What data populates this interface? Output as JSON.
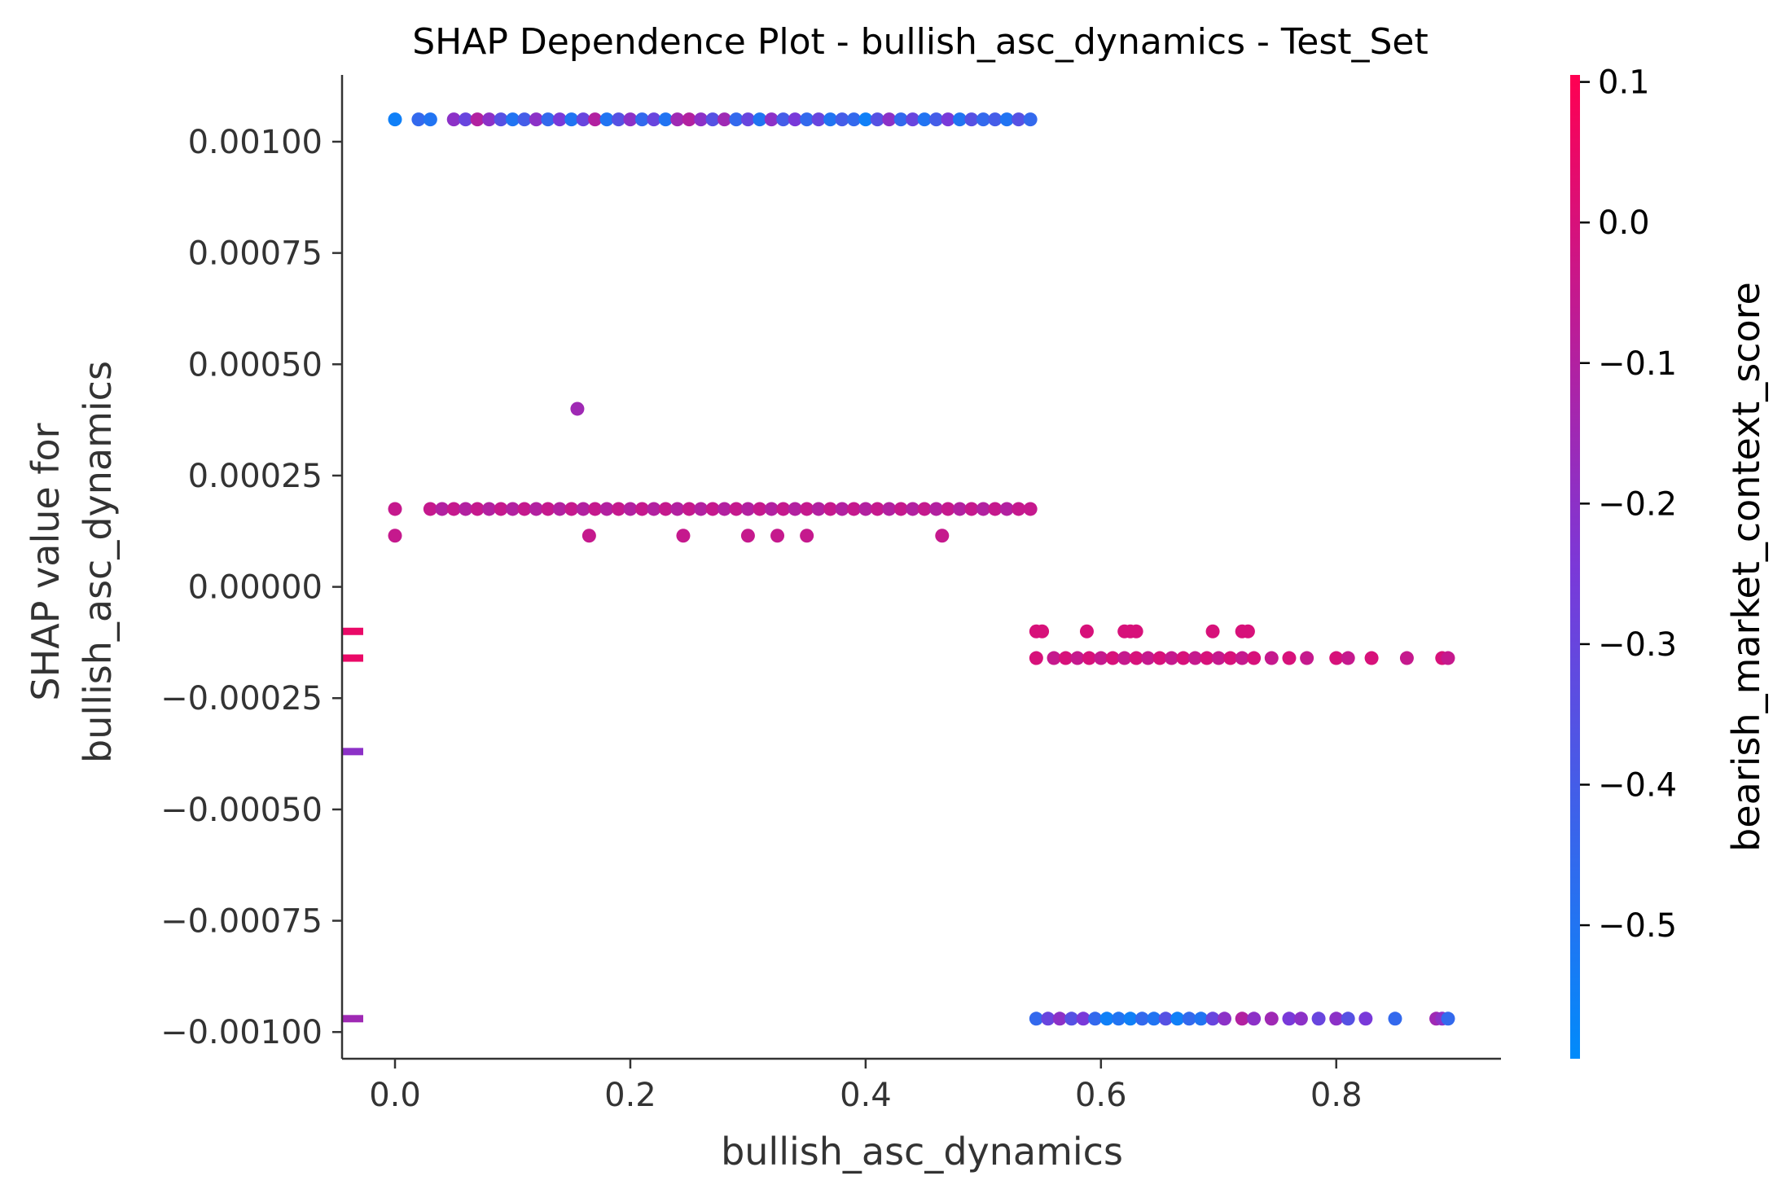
{
  "chart_data": {
    "type": "scatter",
    "title": "SHAP Dependence Plot - bullish_asc_dynamics - Test_Set",
    "xlabel": "bullish_asc_dynamics",
    "ylabel_lines": [
      "SHAP value for",
      "bullish_asc_dynamics"
    ],
    "xlim": [
      -0.045,
      0.94
    ],
    "ylim": [
      -0.00106,
      0.00115
    ],
    "x_ticks": [
      {
        "value": 0.0,
        "label": "0.0"
      },
      {
        "value": 0.2,
        "label": "0.2"
      },
      {
        "value": 0.4,
        "label": "0.4"
      },
      {
        "value": 0.6,
        "label": "0.6"
      },
      {
        "value": 0.8,
        "label": "0.8"
      }
    ],
    "y_ticks": [
      {
        "value": 0.001,
        "label": "0.00100"
      },
      {
        "value": 0.00075,
        "label": "0.00075"
      },
      {
        "value": 0.0005,
        "label": "0.00050"
      },
      {
        "value": 0.00025,
        "label": "0.00025"
      },
      {
        "value": 0.0,
        "label": "0.00000"
      },
      {
        "value": -0.00025,
        "label": "−0.00025"
      },
      {
        "value": -0.0005,
        "label": "−0.00050"
      },
      {
        "value": -0.00075,
        "label": "−0.00075"
      },
      {
        "value": -0.001,
        "label": "−0.00100"
      }
    ],
    "colorbar": {
      "label": "bearish_market_context_score",
      "range": [
        -0.595,
        0.105
      ],
      "ticks": [
        {
          "value": 0.1,
          "label": "0.1"
        },
        {
          "value": 0.0,
          "label": "0.0"
        },
        {
          "value": -0.1,
          "label": "−0.1"
        },
        {
          "value": -0.2,
          "label": "−0.2"
        },
        {
          "value": -0.3,
          "label": "−0.3"
        },
        {
          "value": -0.4,
          "label": "−0.4"
        },
        {
          "value": -0.5,
          "label": "−0.5"
        }
      ],
      "colors": [
        "#008bfb",
        "#ff0052"
      ]
    },
    "missing_markers": [
      {
        "y": -0.0001,
        "c": 0.05
      },
      {
        "y": -0.00016,
        "c": 0.05
      },
      {
        "y": -0.00037,
        "c": -0.2
      },
      {
        "y": -0.00097,
        "c": -0.15
      }
    ],
    "points": [
      {
        "x": 0.0,
        "y": 0.00105,
        "c": -0.55
      },
      {
        "x": 0.02,
        "y": 0.00105,
        "c": -0.45
      },
      {
        "x": 0.03,
        "y": 0.00105,
        "c": -0.5
      },
      {
        "x": 0.05,
        "y": 0.00105,
        "c": -0.2
      },
      {
        "x": 0.06,
        "y": 0.00105,
        "c": -0.3
      },
      {
        "x": 0.07,
        "y": 0.00105,
        "c": -0.1
      },
      {
        "x": 0.08,
        "y": 0.00105,
        "c": -0.2
      },
      {
        "x": 0.09,
        "y": 0.00105,
        "c": -0.35
      },
      {
        "x": 0.1,
        "y": 0.00105,
        "c": -0.5
      },
      {
        "x": 0.11,
        "y": 0.00105,
        "c": -0.4
      },
      {
        "x": 0.12,
        "y": 0.00105,
        "c": -0.2
      },
      {
        "x": 0.13,
        "y": 0.00105,
        "c": -0.45
      },
      {
        "x": 0.14,
        "y": 0.00105,
        "c": -0.25
      },
      {
        "x": 0.15,
        "y": 0.00105,
        "c": -0.5
      },
      {
        "x": 0.16,
        "y": 0.00105,
        "c": -0.3
      },
      {
        "x": 0.17,
        "y": 0.00105,
        "c": -0.1
      },
      {
        "x": 0.18,
        "y": 0.00105,
        "c": -0.5
      },
      {
        "x": 0.19,
        "y": 0.00105,
        "c": -0.35
      },
      {
        "x": 0.2,
        "y": 0.00105,
        "c": -0.2
      },
      {
        "x": 0.21,
        "y": 0.00105,
        "c": -0.45
      },
      {
        "x": 0.22,
        "y": 0.00105,
        "c": -0.3
      },
      {
        "x": 0.23,
        "y": 0.00105,
        "c": -0.5
      },
      {
        "x": 0.24,
        "y": 0.00105,
        "c": -0.15
      },
      {
        "x": 0.25,
        "y": 0.00105,
        "c": -0.1
      },
      {
        "x": 0.26,
        "y": 0.00105,
        "c": -0.2
      },
      {
        "x": 0.27,
        "y": 0.00105,
        "c": -0.35
      },
      {
        "x": 0.28,
        "y": 0.00105,
        "c": -0.15
      },
      {
        "x": 0.29,
        "y": 0.00105,
        "c": -0.45
      },
      {
        "x": 0.3,
        "y": 0.00105,
        "c": -0.3
      },
      {
        "x": 0.31,
        "y": 0.00105,
        "c": -0.5
      },
      {
        "x": 0.32,
        "y": 0.00105,
        "c": -0.2
      },
      {
        "x": 0.33,
        "y": 0.00105,
        "c": -0.4
      },
      {
        "x": 0.34,
        "y": 0.00105,
        "c": -0.25
      },
      {
        "x": 0.35,
        "y": 0.00105,
        "c": -0.45
      },
      {
        "x": 0.36,
        "y": 0.00105,
        "c": -0.3
      },
      {
        "x": 0.37,
        "y": 0.00105,
        "c": -0.5
      },
      {
        "x": 0.38,
        "y": 0.00105,
        "c": -0.4
      },
      {
        "x": 0.39,
        "y": 0.00105,
        "c": -0.45
      },
      {
        "x": 0.4,
        "y": 0.00105,
        "c": -0.55
      },
      {
        "x": 0.41,
        "y": 0.00105,
        "c": -0.35
      },
      {
        "x": 0.42,
        "y": 0.00105,
        "c": -0.2
      },
      {
        "x": 0.43,
        "y": 0.00105,
        "c": -0.45
      },
      {
        "x": 0.44,
        "y": 0.00105,
        "c": -0.3
      },
      {
        "x": 0.45,
        "y": 0.00105,
        "c": -0.5
      },
      {
        "x": 0.46,
        "y": 0.00105,
        "c": -0.4
      },
      {
        "x": 0.47,
        "y": 0.00105,
        "c": -0.25
      },
      {
        "x": 0.48,
        "y": 0.00105,
        "c": -0.5
      },
      {
        "x": 0.49,
        "y": 0.00105,
        "c": -0.35
      },
      {
        "x": 0.5,
        "y": 0.00105,
        "c": -0.45
      },
      {
        "x": 0.51,
        "y": 0.00105,
        "c": -0.4
      },
      {
        "x": 0.52,
        "y": 0.00105,
        "c": -0.5
      },
      {
        "x": 0.53,
        "y": 0.00105,
        "c": -0.35
      },
      {
        "x": 0.54,
        "y": 0.00105,
        "c": -0.45
      },
      {
        "x": 0.155,
        "y": 0.0004,
        "c": -0.15
      },
      {
        "x": 0.0,
        "y": 0.000175,
        "c": -0.05
      },
      {
        "x": 0.03,
        "y": 0.000175,
        "c": -0.05
      },
      {
        "x": 0.04,
        "y": 0.000175,
        "c": -0.1
      },
      {
        "x": 0.05,
        "y": 0.000175,
        "c": -0.05
      },
      {
        "x": 0.06,
        "y": 0.000175,
        "c": -0.1
      },
      {
        "x": 0.07,
        "y": 0.000175,
        "c": -0.05
      },
      {
        "x": 0.08,
        "y": 0.000175,
        "c": -0.1
      },
      {
        "x": 0.09,
        "y": 0.000175,
        "c": -0.05
      },
      {
        "x": 0.1,
        "y": 0.000175,
        "c": -0.1
      },
      {
        "x": 0.11,
        "y": 0.000175,
        "c": -0.05
      },
      {
        "x": 0.12,
        "y": 0.000175,
        "c": -0.1
      },
      {
        "x": 0.13,
        "y": 0.000175,
        "c": -0.05
      },
      {
        "x": 0.14,
        "y": 0.000175,
        "c": -0.1
      },
      {
        "x": 0.15,
        "y": 0.000175,
        "c": -0.05
      },
      {
        "x": 0.16,
        "y": 0.000175,
        "c": -0.1
      },
      {
        "x": 0.17,
        "y": 0.000175,
        "c": -0.05
      },
      {
        "x": 0.18,
        "y": 0.000175,
        "c": -0.1
      },
      {
        "x": 0.19,
        "y": 0.000175,
        "c": -0.05
      },
      {
        "x": 0.2,
        "y": 0.000175,
        "c": -0.1
      },
      {
        "x": 0.21,
        "y": 0.000175,
        "c": -0.05
      },
      {
        "x": 0.22,
        "y": 0.000175,
        "c": -0.1
      },
      {
        "x": 0.23,
        "y": 0.000175,
        "c": -0.05
      },
      {
        "x": 0.24,
        "y": 0.000175,
        "c": -0.1
      },
      {
        "x": 0.25,
        "y": 0.000175,
        "c": -0.05
      },
      {
        "x": 0.26,
        "y": 0.000175,
        "c": -0.1
      },
      {
        "x": 0.27,
        "y": 0.000175,
        "c": -0.05
      },
      {
        "x": 0.28,
        "y": 0.000175,
        "c": -0.1
      },
      {
        "x": 0.29,
        "y": 0.000175,
        "c": -0.05
      },
      {
        "x": 0.3,
        "y": 0.000175,
        "c": -0.1
      },
      {
        "x": 0.31,
        "y": 0.000175,
        "c": -0.05
      },
      {
        "x": 0.32,
        "y": 0.000175,
        "c": -0.1
      },
      {
        "x": 0.33,
        "y": 0.000175,
        "c": -0.05
      },
      {
        "x": 0.34,
        "y": 0.000175,
        "c": -0.1
      },
      {
        "x": 0.35,
        "y": 0.000175,
        "c": -0.05
      },
      {
        "x": 0.36,
        "y": 0.000175,
        "c": -0.1
      },
      {
        "x": 0.37,
        "y": 0.000175,
        "c": -0.05
      },
      {
        "x": 0.38,
        "y": 0.000175,
        "c": -0.1
      },
      {
        "x": 0.39,
        "y": 0.000175,
        "c": -0.05
      },
      {
        "x": 0.4,
        "y": 0.000175,
        "c": -0.1
      },
      {
        "x": 0.41,
        "y": 0.000175,
        "c": -0.05
      },
      {
        "x": 0.42,
        "y": 0.000175,
        "c": -0.1
      },
      {
        "x": 0.43,
        "y": 0.000175,
        "c": -0.05
      },
      {
        "x": 0.44,
        "y": 0.000175,
        "c": -0.1
      },
      {
        "x": 0.45,
        "y": 0.000175,
        "c": -0.05
      },
      {
        "x": 0.46,
        "y": 0.000175,
        "c": -0.1
      },
      {
        "x": 0.47,
        "y": 0.000175,
        "c": -0.05
      },
      {
        "x": 0.48,
        "y": 0.000175,
        "c": -0.1
      },
      {
        "x": 0.49,
        "y": 0.000175,
        "c": -0.05
      },
      {
        "x": 0.5,
        "y": 0.000175,
        "c": -0.1
      },
      {
        "x": 0.51,
        "y": 0.000175,
        "c": -0.05
      },
      {
        "x": 0.52,
        "y": 0.000175,
        "c": -0.1
      },
      {
        "x": 0.53,
        "y": 0.000175,
        "c": -0.05
      },
      {
        "x": 0.54,
        "y": 0.000175,
        "c": -0.05
      },
      {
        "x": 0.0,
        "y": 0.000115,
        "c": -0.05
      },
      {
        "x": 0.165,
        "y": 0.000115,
        "c": -0.05
      },
      {
        "x": 0.245,
        "y": 0.000115,
        "c": -0.05
      },
      {
        "x": 0.3,
        "y": 0.000115,
        "c": -0.05
      },
      {
        "x": 0.325,
        "y": 0.000115,
        "c": -0.05
      },
      {
        "x": 0.35,
        "y": 0.000115,
        "c": -0.05
      },
      {
        "x": 0.465,
        "y": 0.000115,
        "c": -0.05
      },
      {
        "x": 0.545,
        "y": -0.0001,
        "c": 0.0
      },
      {
        "x": 0.55,
        "y": -0.0001,
        "c": 0.0
      },
      {
        "x": 0.588,
        "y": -0.0001,
        "c": 0.0
      },
      {
        "x": 0.62,
        "y": -0.0001,
        "c": 0.0
      },
      {
        "x": 0.625,
        "y": -0.0001,
        "c": 0.0
      },
      {
        "x": 0.63,
        "y": -0.0001,
        "c": 0.0
      },
      {
        "x": 0.695,
        "y": -0.0001,
        "c": 0.0
      },
      {
        "x": 0.72,
        "y": -0.0001,
        "c": 0.0
      },
      {
        "x": 0.725,
        "y": -0.0001,
        "c": 0.0
      },
      {
        "x": 0.545,
        "y": -0.00016,
        "c": 0.0
      },
      {
        "x": 0.56,
        "y": -0.00016,
        "c": -0.05
      },
      {
        "x": 0.57,
        "y": -0.00016,
        "c": 0.0
      },
      {
        "x": 0.58,
        "y": -0.00016,
        "c": -0.05
      },
      {
        "x": 0.59,
        "y": -0.00016,
        "c": 0.0
      },
      {
        "x": 0.6,
        "y": -0.00016,
        "c": -0.05
      },
      {
        "x": 0.61,
        "y": -0.00016,
        "c": 0.0
      },
      {
        "x": 0.62,
        "y": -0.00016,
        "c": -0.05
      },
      {
        "x": 0.63,
        "y": -0.00016,
        "c": 0.0
      },
      {
        "x": 0.64,
        "y": -0.00016,
        "c": -0.05
      },
      {
        "x": 0.65,
        "y": -0.00016,
        "c": 0.0
      },
      {
        "x": 0.66,
        "y": -0.00016,
        "c": -0.05
      },
      {
        "x": 0.67,
        "y": -0.00016,
        "c": 0.0
      },
      {
        "x": 0.68,
        "y": -0.00016,
        "c": -0.05
      },
      {
        "x": 0.69,
        "y": -0.00016,
        "c": 0.0
      },
      {
        "x": 0.7,
        "y": -0.00016,
        "c": -0.05
      },
      {
        "x": 0.71,
        "y": -0.00016,
        "c": 0.0
      },
      {
        "x": 0.72,
        "y": -0.00016,
        "c": -0.05
      },
      {
        "x": 0.73,
        "y": -0.00016,
        "c": 0.0
      },
      {
        "x": 0.745,
        "y": -0.00016,
        "c": -0.05
      },
      {
        "x": 0.76,
        "y": -0.00016,
        "c": 0.0
      },
      {
        "x": 0.775,
        "y": -0.00016,
        "c": -0.05
      },
      {
        "x": 0.8,
        "y": -0.00016,
        "c": 0.0
      },
      {
        "x": 0.81,
        "y": -0.00016,
        "c": -0.05
      },
      {
        "x": 0.83,
        "y": -0.00016,
        "c": 0.0
      },
      {
        "x": 0.86,
        "y": -0.00016,
        "c": -0.05
      },
      {
        "x": 0.89,
        "y": -0.00016,
        "c": 0.0
      },
      {
        "x": 0.895,
        "y": -0.00016,
        "c": -0.05
      },
      {
        "x": 0.545,
        "y": -0.00097,
        "c": -0.45
      },
      {
        "x": 0.555,
        "y": -0.00097,
        "c": -0.3
      },
      {
        "x": 0.565,
        "y": -0.00097,
        "c": -0.2
      },
      {
        "x": 0.575,
        "y": -0.00097,
        "c": -0.35
      },
      {
        "x": 0.585,
        "y": -0.00097,
        "c": -0.25
      },
      {
        "x": 0.595,
        "y": -0.00097,
        "c": -0.45
      },
      {
        "x": 0.605,
        "y": -0.00097,
        "c": -0.55
      },
      {
        "x": 0.615,
        "y": -0.00097,
        "c": -0.5
      },
      {
        "x": 0.625,
        "y": -0.00097,
        "c": -0.55
      },
      {
        "x": 0.635,
        "y": -0.00097,
        "c": -0.45
      },
      {
        "x": 0.645,
        "y": -0.00097,
        "c": -0.5
      },
      {
        "x": 0.655,
        "y": -0.00097,
        "c": -0.35
      },
      {
        "x": 0.665,
        "y": -0.00097,
        "c": -0.55
      },
      {
        "x": 0.675,
        "y": -0.00097,
        "c": -0.45
      },
      {
        "x": 0.685,
        "y": -0.00097,
        "c": -0.5
      },
      {
        "x": 0.695,
        "y": -0.00097,
        "c": -0.3
      },
      {
        "x": 0.705,
        "y": -0.00097,
        "c": -0.2
      },
      {
        "x": 0.72,
        "y": -0.00097,
        "c": -0.1
      },
      {
        "x": 0.73,
        "y": -0.00097,
        "c": -0.2
      },
      {
        "x": 0.745,
        "y": -0.00097,
        "c": -0.15
      },
      {
        "x": 0.76,
        "y": -0.00097,
        "c": -0.25
      },
      {
        "x": 0.77,
        "y": -0.00097,
        "c": -0.2
      },
      {
        "x": 0.785,
        "y": -0.00097,
        "c": -0.3
      },
      {
        "x": 0.8,
        "y": -0.00097,
        "c": -0.2
      },
      {
        "x": 0.81,
        "y": -0.00097,
        "c": -0.35
      },
      {
        "x": 0.825,
        "y": -0.00097,
        "c": -0.25
      },
      {
        "x": 0.85,
        "y": -0.00097,
        "c": -0.45
      },
      {
        "x": 0.885,
        "y": -0.00097,
        "c": -0.15
      },
      {
        "x": 0.89,
        "y": -0.00097,
        "c": -0.2
      },
      {
        "x": 0.895,
        "y": -0.00097,
        "c": -0.45
      }
    ]
  }
}
